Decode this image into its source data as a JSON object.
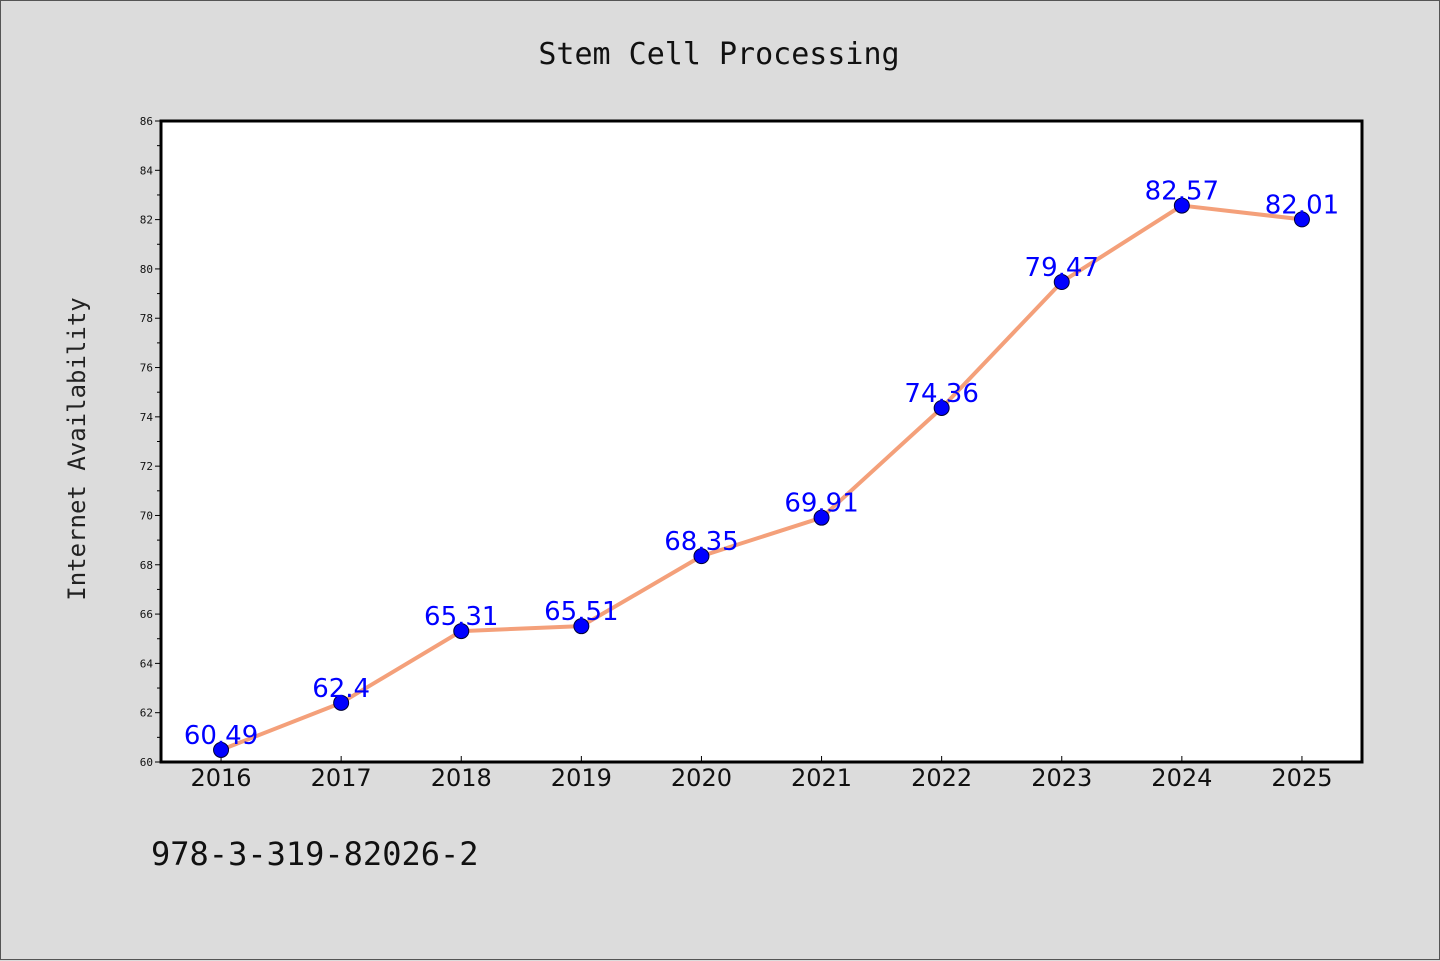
{
  "chart_data": {
    "type": "line",
    "title": "Stem Cell Processing",
    "xlabel": "",
    "ylabel": "Internet Availability",
    "categories": [
      "2016",
      "2017",
      "2018",
      "2019",
      "2020",
      "2021",
      "2022",
      "2023",
      "2024",
      "2025"
    ],
    "series": [
      {
        "values": [
          60.49,
          62.4,
          65.31,
          65.51,
          68.35,
          69.91,
          74.36,
          79.47,
          82.57,
          82.01
        ],
        "line_color": "#f4a07a",
        "marker_color": "#0000ff"
      }
    ],
    "data_labels": [
      "60.49",
      "62.4",
      "65.31",
      "65.51",
      "68.35",
      "69.91",
      "74.36",
      "79.47",
      "82.57",
      "82.01"
    ],
    "ylim": [
      60,
      86
    ],
    "yticks": [
      60,
      62,
      64,
      66,
      68,
      70,
      72,
      74,
      76,
      78,
      80,
      82,
      84,
      86
    ],
    "grid": false,
    "legend": "none"
  },
  "footer": {
    "text": "978-3-319-82026-2"
  }
}
